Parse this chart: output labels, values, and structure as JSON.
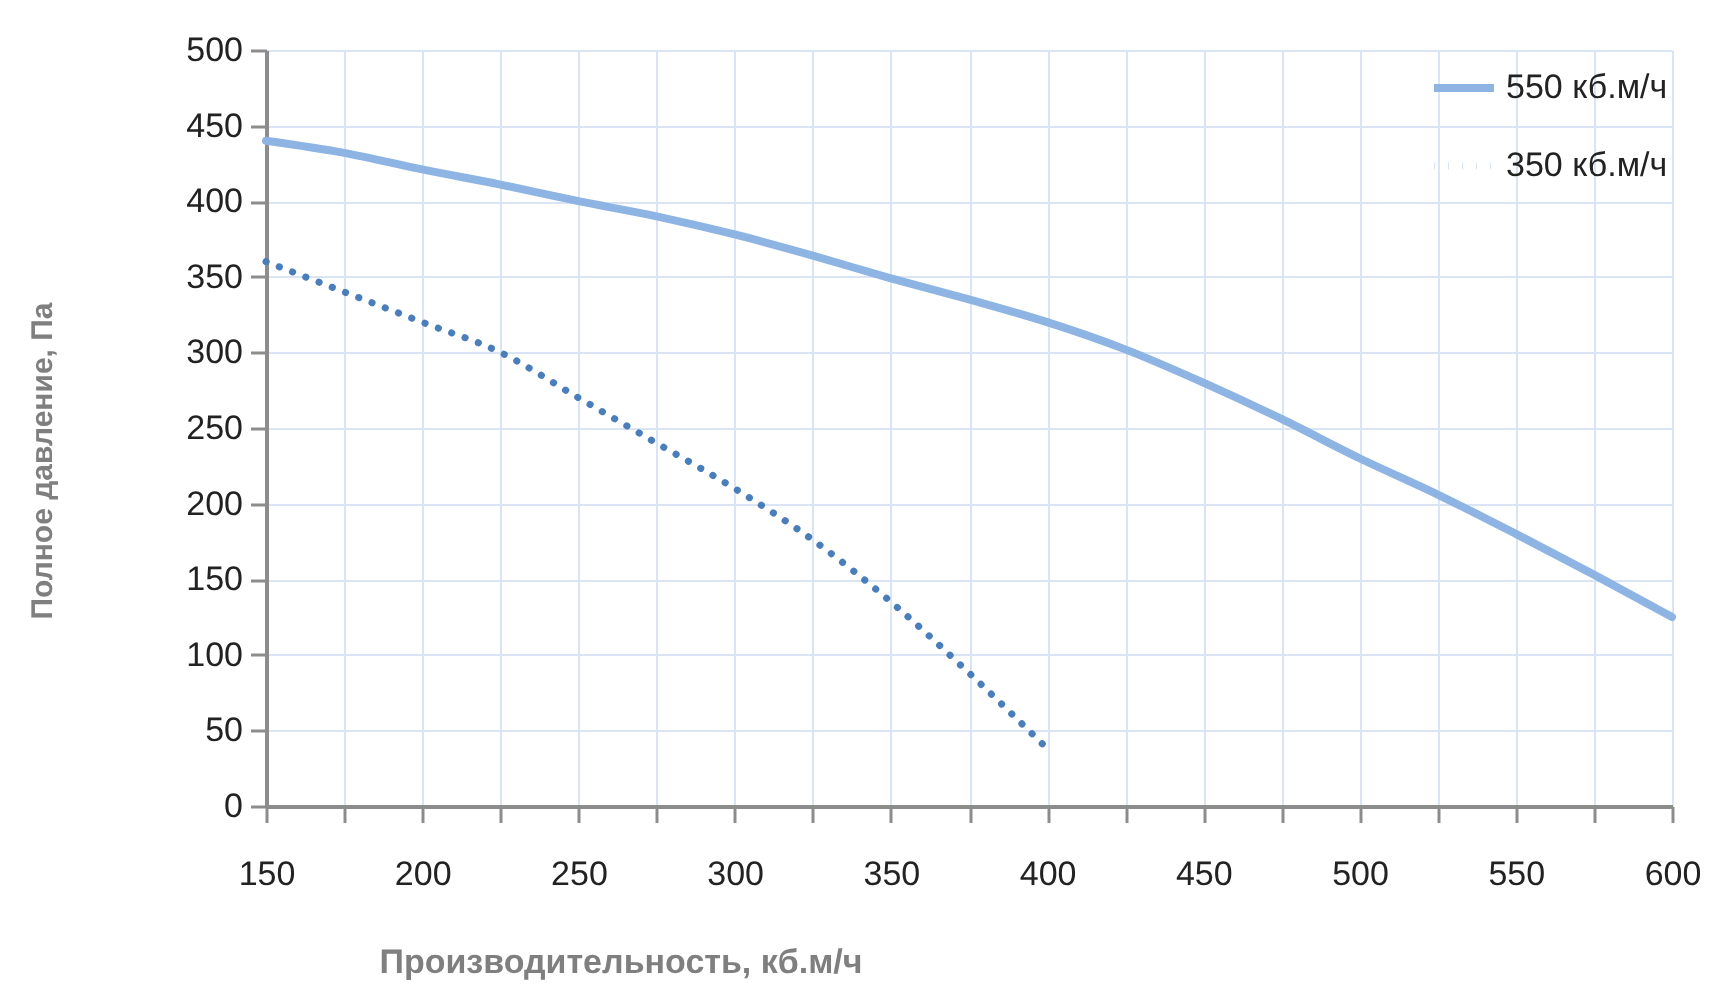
{
  "chart_data": {
    "type": "line",
    "xlabel": "Производительность, кб.м/ч",
    "ylabel": "Полное  давление, Па",
    "x": [
      150,
      175,
      200,
      225,
      250,
      275,
      300,
      325,
      350,
      375,
      400,
      425,
      450,
      475,
      500,
      525,
      550,
      575,
      600
    ],
    "series": [
      {
        "name": "550 кб.м/ч",
        "color": "#8eb4e3",
        "line_style": "solid",
        "values": [
          440,
          432,
          421,
          411,
          400,
          390,
          378,
          364,
          349,
          335,
          320,
          302,
          280,
          256,
          230,
          206,
          180,
          153,
          125
        ]
      },
      {
        "name": "350 кб.м/ч",
        "color": "#4a7ebb",
        "line_style": "dotted",
        "x": [
          150,
          175,
          200,
          225,
          250,
          275,
          300,
          325,
          350,
          375,
          400
        ],
        "values": [
          360,
          340,
          320,
          300,
          270,
          240,
          210,
          176,
          135,
          88,
          38
        ]
      }
    ],
    "xlim": [
      150,
      600
    ],
    "xticks": [
      150,
      {
        "value": 175,
        "label": null
      },
      200,
      {
        "value": 225,
        "label": null
      },
      250,
      {
        "value": 275,
        "label": null
      },
      300,
      {
        "value": 325,
        "label": null
      },
      350,
      {
        "value": 375,
        "label": null
      },
      400,
      {
        "value": 425,
        "label": null
      },
      450,
      {
        "value": 475,
        "label": null
      },
      500,
      {
        "value": 525,
        "label": null
      },
      550,
      {
        "value": 575,
        "label": null
      },
      600
    ],
    "ylim": [
      0,
      500
    ],
    "yticks": [
      0,
      50,
      100,
      150,
      200,
      250,
      300,
      350,
      400,
      450,
      500
    ],
    "grid": true,
    "legend": "top right",
    "marker": "none"
  }
}
